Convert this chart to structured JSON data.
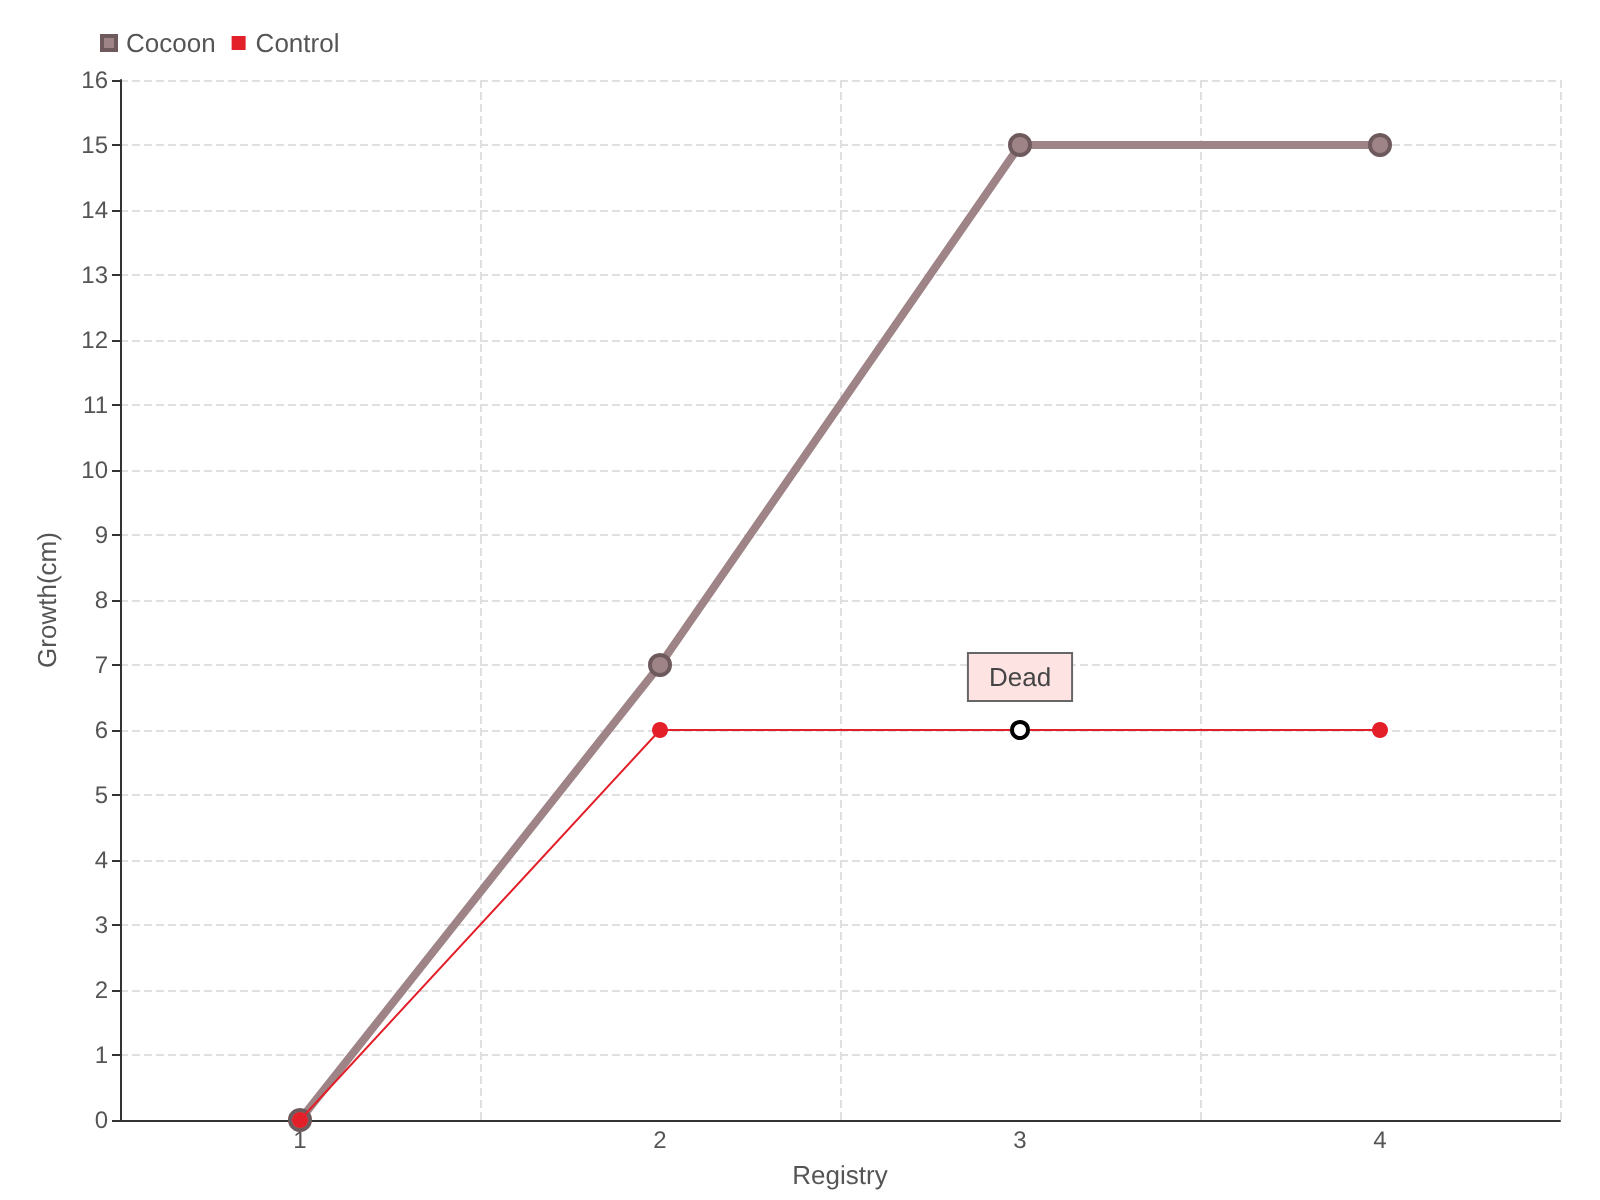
{
  "chart_data": {
    "type": "line",
    "xlabel": "Registry",
    "ylabel": "Growth(cm)",
    "categories": [
      "1",
      "2",
      "3",
      "4"
    ],
    "series": [
      {
        "name": "Cocoon",
        "color": "#9e8387",
        "values": [
          0,
          7,
          15,
          15
        ]
      },
      {
        "name": "Control",
        "color": "#e3202a",
        "values": [
          0,
          6,
          6,
          6
        ]
      }
    ],
    "ylim": [
      0,
      16
    ],
    "yticks": [
      0,
      1,
      2,
      3,
      4,
      5,
      6,
      7,
      8,
      9,
      10,
      11,
      12,
      13,
      14,
      15,
      16
    ],
    "annotations": [
      {
        "text": "Dead",
        "x": "3",
        "y": 6
      }
    ],
    "grid": true,
    "legend": "top left",
    "marker": "circle",
    "line_style": "solid"
  }
}
